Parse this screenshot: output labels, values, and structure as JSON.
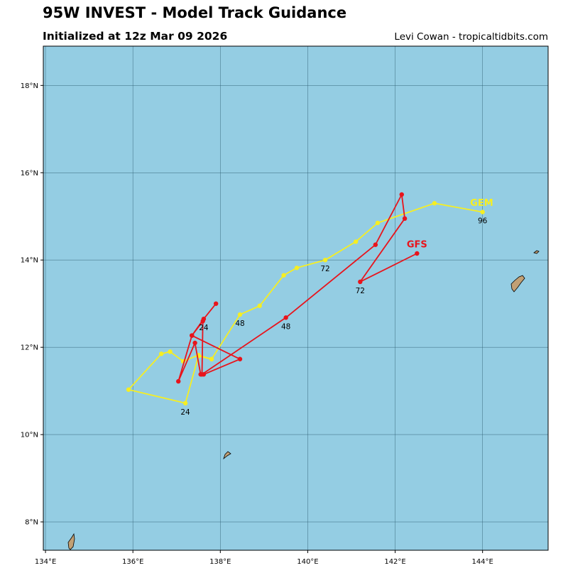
{
  "header": {
    "title": "95W INVEST - Model Track Guidance",
    "subtitle": "Initialized at 12z Mar 09 2026",
    "credit": "Levi Cowan - tropicaltidbits.com"
  },
  "colors": {
    "ocean": "#94cde3",
    "land": "#c2a074",
    "grid": "#2f5f73",
    "gfs": "#e8141c",
    "gem": "#f6ee22"
  },
  "chart_data": {
    "type": "map-track",
    "x_axis": {
      "range": [
        133.95,
        145.5
      ],
      "ticks": [
        134,
        136,
        138,
        140,
        142,
        144
      ],
      "tick_labels": [
        "134°E",
        "136°E",
        "138°E",
        "140°E",
        "142°E",
        "144°E"
      ]
    },
    "y_axis": {
      "range": [
        7.35,
        18.9
      ],
      "ticks": [
        8,
        10,
        12,
        14,
        16,
        18
      ],
      "tick_labels": [
        "8°N",
        "10°N",
        "12°N",
        "14°N",
        "16°N",
        "18°N"
      ]
    },
    "grid": true,
    "series": [
      {
        "name": "GEM",
        "color": "#f6ee22",
        "points": [
          [
            137.8,
            11.73
          ],
          [
            137.5,
            11.82
          ],
          [
            137.15,
            11.68
          ],
          [
            136.85,
            11.9
          ],
          [
            136.65,
            11.85
          ],
          [
            135.9,
            11.03
          ],
          [
            137.2,
            10.72
          ],
          [
            137.5,
            11.8
          ],
          [
            137.8,
            11.73
          ],
          [
            138.45,
            12.75
          ],
          [
            138.9,
            12.95
          ],
          [
            139.45,
            13.65
          ],
          [
            139.75,
            13.82
          ],
          [
            140.4,
            14.0
          ],
          [
            141.1,
            14.42
          ],
          [
            141.6,
            14.85
          ],
          [
            142.9,
            15.3
          ],
          [
            144.0,
            15.1
          ]
        ],
        "labels": [
          {
            "text": "24",
            "lon": 137.2,
            "lat": 10.72
          },
          {
            "text": "48",
            "lon": 138.45,
            "lat": 12.75
          },
          {
            "text": "72",
            "lon": 140.4,
            "lat": 14.0
          },
          {
            "text": "96",
            "lon": 144.0,
            "lat": 15.1
          }
        ],
        "name_position": [
          143.98,
          15.32
        ]
      },
      {
        "name": "GFS",
        "color": "#e8141c",
        "points": [
          [
            137.9,
            13.0
          ],
          [
            137.62,
            12.65
          ],
          [
            137.35,
            12.27
          ],
          [
            137.04,
            11.22
          ],
          [
            137.42,
            12.1
          ],
          [
            137.55,
            11.38
          ],
          [
            137.62,
            11.38
          ],
          [
            138.45,
            11.73
          ],
          [
            137.35,
            12.27
          ],
          [
            137.6,
            12.6
          ],
          [
            137.58,
            11.38
          ],
          [
            139.5,
            12.68
          ],
          [
            141.55,
            14.35
          ],
          [
            142.15,
            15.5
          ],
          [
            142.22,
            14.95
          ],
          [
            141.2,
            13.5
          ],
          [
            142.5,
            14.15
          ]
        ],
        "labels": [
          {
            "text": "24",
            "lon": 137.62,
            "lat": 12.65
          },
          {
            "text": "48",
            "lon": 139.5,
            "lat": 12.68
          },
          {
            "text": "72",
            "lon": 141.2,
            "lat": 13.5
          }
        ],
        "name_position": [
          142.5,
          14.37
        ]
      }
    ]
  }
}
